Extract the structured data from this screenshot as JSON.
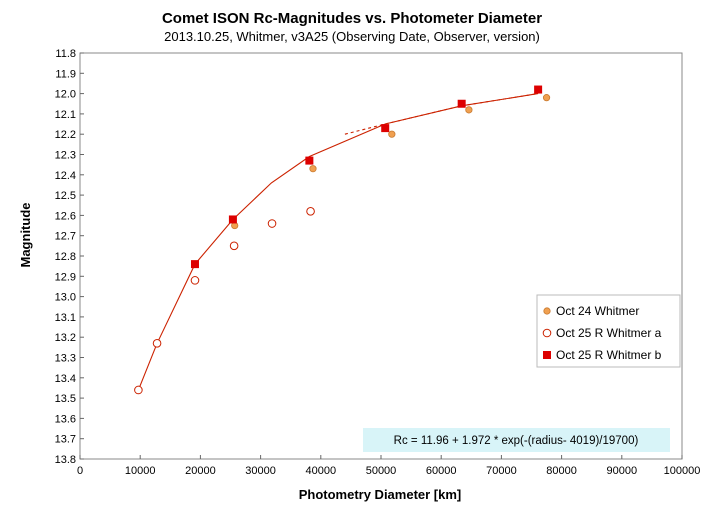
{
  "chart_data": {
    "type": "scatter",
    "title": "Comet ISON Rc-Magnitudes  vs. Photometer Diameter",
    "subtitle": "2013.10.25,  Whitmer, v3A25 (Observing Date, Observer, version)",
    "xlabel": "Photometry Diameter  [km]",
    "ylabel": "Magnitude",
    "xlim": [
      0,
      100000
    ],
    "ylim": [
      11.8,
      13.8
    ],
    "y_inverted": true,
    "x_ticks": [
      0,
      10000,
      20000,
      30000,
      40000,
      50000,
      60000,
      70000,
      80000,
      90000,
      100000
    ],
    "y_ticks": [
      11.8,
      11.9,
      12.0,
      12.1,
      12.2,
      12.3,
      12.4,
      12.5,
      12.6,
      12.7,
      12.8,
      12.9,
      13.0,
      13.1,
      13.2,
      13.3,
      13.4,
      13.5,
      13.6,
      13.7,
      13.8
    ],
    "x_tick_labels": [
      "0",
      "10000",
      "20000",
      "30000",
      "40000",
      "50000",
      "60000",
      "70000",
      "80000",
      "90000",
      "100000"
    ],
    "y_tick_labels": [
      "11.8",
      "11.9",
      "12.0",
      "12.1",
      "12.2",
      "12.3",
      "12.4",
      "12.5",
      "12.6",
      "12.7",
      "12.8",
      "12.9",
      "13.0",
      "13.1",
      "13.2",
      "13.3",
      "13.4",
      "13.5",
      "13.6",
      "13.7",
      "13.8"
    ],
    "grid": false,
    "legend_position": "right",
    "series": [
      {
        "name": "Oct 24 Whitmer",
        "marker": "filled-circle-small",
        "color": "#f0a050",
        "points": [
          [
            25700,
            12.65
          ],
          [
            38700,
            12.37
          ],
          [
            51800,
            12.2
          ],
          [
            64600,
            12.08
          ],
          [
            77500,
            12.02
          ]
        ]
      },
      {
        "name": "Oct 25 R Whitmer a",
        "marker": "open-circle",
        "color": "#cc2200",
        "points": [
          [
            9700,
            13.46
          ],
          [
            12800,
            13.23
          ],
          [
            19100,
            12.92
          ],
          [
            25600,
            12.75
          ],
          [
            31900,
            12.64
          ],
          [
            38300,
            12.58
          ]
        ]
      },
      {
        "name": "Oct 25 R Whitmer b",
        "marker": "filled-square",
        "color": "#dd0000",
        "points": [
          [
            19100,
            12.84
          ],
          [
            25400,
            12.62
          ],
          [
            38100,
            12.33
          ],
          [
            50700,
            12.17
          ],
          [
            63400,
            12.05
          ],
          [
            76100,
            11.98
          ]
        ]
      }
    ],
    "fit_lines": [
      {
        "style": "solid",
        "color": "#cc2200",
        "points": [
          [
            9700,
            13.46
          ],
          [
            12800,
            13.23
          ],
          [
            19100,
            12.84
          ],
          [
            25400,
            12.62
          ],
          [
            31800,
            12.44
          ],
          [
            38100,
            12.31
          ],
          [
            50700,
            12.15
          ],
          [
            63400,
            12.06
          ],
          [
            76100,
            12.0
          ]
        ]
      },
      {
        "style": "dashed",
        "color": "#cc2200",
        "points": [
          [
            44000,
            12.2
          ],
          [
            50700,
            12.15
          ],
          [
            63400,
            12.06
          ],
          [
            76100,
            12.0
          ]
        ]
      }
    ],
    "annotation": "Rc = 11.96 + 1.972 * exp(-(radius- 4019)/19700)"
  },
  "colors": {
    "note_bg": "#d8f4f8",
    "legend_border": "#bbbbbb"
  }
}
